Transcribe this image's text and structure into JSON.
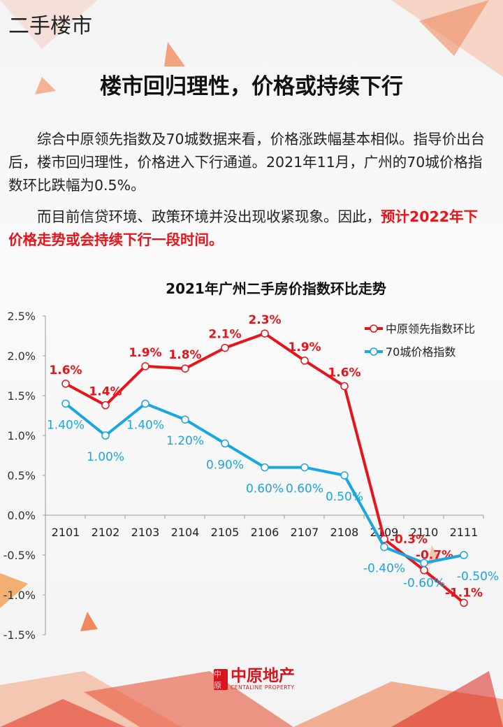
{
  "section_tag": "二手楼市",
  "headline": "楼市回归理性，价格或持续下行",
  "paragraph1": "综合中原领先指数及70城数据来看，价格涨跌幅基本相似。指导价出台后，楼市回归理性，价格进入下行通道。2021年11月，广州的70城价格指数环比跌幅为0.5%。",
  "paragraph2_plain": "而目前信贷环境、政策环境并没出现收紧现象。因此，",
  "paragraph2_highlight": "预计2022年下价格走势或会持续下行一段时间。",
  "logo": {
    "cn": "中原地产",
    "en": "CENTALINE PROPERTY",
    "mark": "中原"
  },
  "colors": {
    "red": "#e8141b",
    "blue": "#1aa6e0",
    "highlight": "#e8141b"
  },
  "chart_data": {
    "type": "line",
    "title": "2021年广州二手房价指数环比走势",
    "categories": [
      "2101",
      "2102",
      "2103",
      "2104",
      "2105",
      "2106",
      "2107",
      "2108",
      "2109",
      "2110",
      "2111"
    ],
    "ylim": [
      -1.5,
      2.5
    ],
    "yticks": [
      "2.5%",
      "2.0%",
      "1.5%",
      "1.0%",
      "0.5%",
      "0.0%",
      "-0.5%",
      "-1.0%",
      "-1.5%"
    ],
    "ytick_values": [
      2.5,
      2.0,
      1.5,
      1.0,
      0.5,
      0.0,
      -0.5,
      -1.0,
      -1.5
    ],
    "grid": false,
    "legend_position": "top-right",
    "series": [
      {
        "name": "中原领先指数环比",
        "color": "#e8141b",
        "values": [
          1.65,
          1.38,
          1.87,
          1.84,
          2.1,
          2.28,
          1.94,
          1.62,
          -0.3,
          -0.69,
          -1.1
        ],
        "labels": [
          "1.6%",
          "1.4%",
          "1.9%",
          "1.8%",
          "2.1%",
          "2.3%",
          "1.9%",
          "1.6%",
          "-0.3%",
          "-0.7%",
          "-1.1%"
        ]
      },
      {
        "name": "70城价格指数",
        "color": "#1aa6e0",
        "values": [
          1.4,
          1.0,
          1.4,
          1.2,
          0.9,
          0.6,
          0.6,
          0.5,
          -0.4,
          -0.6,
          -0.5
        ],
        "labels": [
          "1.40%",
          "1.00%",
          "1.40%",
          "1.20%",
          "0.90%",
          "0.60%",
          "0.60%",
          "0.50%",
          "-0.40%",
          "-0.60%",
          "-0.50%"
        ]
      }
    ]
  }
}
